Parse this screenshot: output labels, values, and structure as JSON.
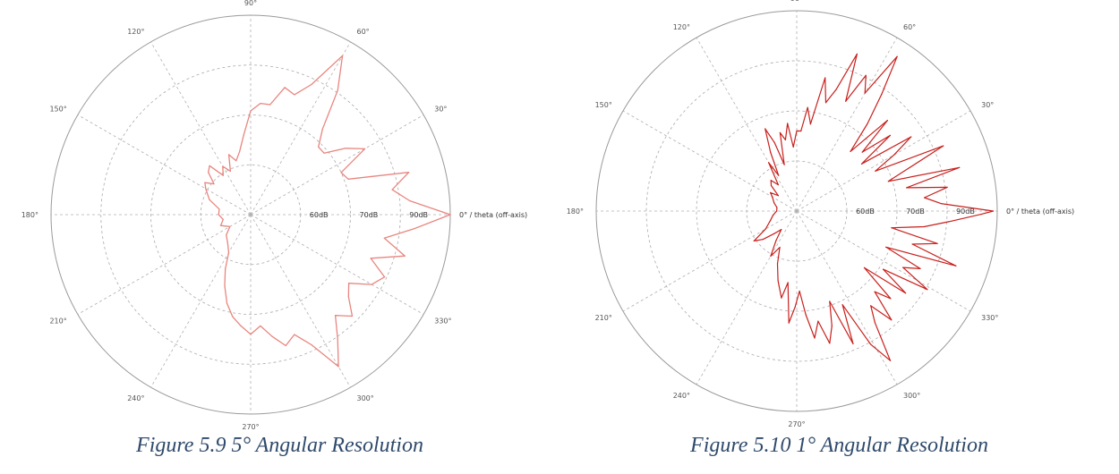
{
  "figures": [
    {
      "caption": "Figure 5.9 5° Angular Resolution",
      "series_color": "#e8867f"
    },
    {
      "caption": "Figure 5.10 1° Angular Resolution",
      "series_color": "#c8201c"
    }
  ],
  "chart_data": [
    {
      "type": "polar-line",
      "angular_unit": "degrees",
      "angular_ticks": [
        "0° / theta (off-axis)",
        "30°",
        "60°",
        "90°",
        "120°",
        "150°",
        "180°",
        "210°",
        "240°",
        "270°",
        "300°",
        "330°"
      ],
      "radial_ticks": [
        "60dB",
        "70dB",
        "90dB"
      ],
      "r_range_db": [
        40,
        90
      ],
      "grid": true,
      "series": [
        {
          "angular_resolution_deg": 5,
          "points": [
            [
              0,
              90
            ],
            [
              5,
              80
            ],
            [
              10,
              76
            ],
            [
              15,
              81
            ],
            [
              20,
              66
            ],
            [
              25,
              65
            ],
            [
              30,
              73
            ],
            [
              35,
              69
            ],
            [
              40,
              64
            ],
            [
              45,
              64
            ],
            [
              50,
              68
            ],
            [
              55,
              78
            ],
            [
              60,
              86
            ],
            [
              65,
              76
            ],
            [
              70,
              72
            ],
            [
              75,
              73
            ],
            [
              80,
              68
            ],
            [
              85,
              68
            ],
            [
              90,
              66
            ],
            [
              95,
              60
            ],
            [
              100,
              56
            ],
            [
              105,
              54
            ],
            [
              110,
              56
            ],
            [
              115,
              52
            ],
            [
              120,
              54
            ],
            [
              125,
              52
            ],
            [
              130,
              56
            ],
            [
              135,
              55
            ],
            [
              140,
              52
            ],
            [
              145,
              54
            ],
            [
              150,
              53
            ],
            [
              160,
              51
            ],
            [
              170,
              48
            ],
            [
              180,
              48
            ],
            [
              190,
              47
            ],
            [
              200,
              48
            ],
            [
              210,
              46
            ],
            [
              220,
              48
            ],
            [
              230,
              49
            ],
            [
              240,
              51
            ],
            [
              245,
              55
            ],
            [
              250,
              59
            ],
            [
              255,
              63
            ],
            [
              260,
              66
            ],
            [
              265,
              68
            ],
            [
              270,
              70
            ],
            [
              275,
              68
            ],
            [
              280,
              71
            ],
            [
              285,
              74
            ],
            [
              290,
              72
            ],
            [
              295,
              76
            ],
            [
              300,
              84
            ],
            [
              305,
              78
            ],
            [
              310,
              73
            ],
            [
              315,
              76
            ],
            [
              320,
              72
            ],
            [
              325,
              70
            ],
            [
              330,
              75
            ],
            [
              335,
              77
            ],
            [
              340,
              72
            ],
            [
              345,
              80
            ],
            [
              350,
              74
            ],
            [
              355,
              81
            ]
          ]
        }
      ]
    },
    {
      "type": "polar-line",
      "angular_unit": "degrees",
      "angular_ticks": [
        "0° / theta (off-axis)",
        "30°",
        "60°",
        "90°",
        "120°",
        "150°",
        "180°",
        "210°",
        "240°",
        "270°",
        "300°",
        "330°"
      ],
      "radial_ticks": [
        "60dB",
        "70dB",
        "90dB"
      ],
      "r_range_db": [
        40,
        90
      ],
      "grid": true,
      "series": [
        {
          "angular_resolution_deg": 1,
          "points": [
            [
              0,
              89
            ],
            [
              3,
              76
            ],
            [
              6,
              72
            ],
            [
              9,
              78
            ],
            [
              12,
              68
            ],
            [
              15,
              82
            ],
            [
              18,
              64
            ],
            [
              21,
              70
            ],
            [
              24,
              80
            ],
            [
              27,
              62
            ],
            [
              30,
              68
            ],
            [
              33,
              74
            ],
            [
              36,
              60
            ],
            [
              39,
              70
            ],
            [
              42,
              62
            ],
            [
              45,
              72
            ],
            [
              48,
              60
            ],
            [
              51,
              68
            ],
            [
              54,
              76
            ],
            [
              57,
              86
            ],
            [
              60,
              74
            ],
            [
              63,
              78
            ],
            [
              66,
              70
            ],
            [
              69,
              82
            ],
            [
              72,
              72
            ],
            [
              75,
              68
            ],
            [
              78,
              74
            ],
            [
              81,
              62
            ],
            [
              84,
              66
            ],
            [
              87,
              60
            ],
            [
              90,
              60
            ],
            [
              93,
              56
            ],
            [
              96,
              62
            ],
            [
              99,
              58
            ],
            [
              102,
              60
            ],
            [
              105,
              52
            ],
            [
              108,
              58
            ],
            [
              111,
              62
            ],
            [
              114,
              56
            ],
            [
              117,
              50
            ],
            [
              120,
              54
            ],
            [
              125,
              48
            ],
            [
              130,
              50
            ],
            [
              135,
              49
            ],
            [
              140,
              46
            ],
            [
              145,
              48
            ],
            [
              150,
              47
            ],
            [
              160,
              46
            ],
            [
              170,
              45
            ],
            [
              180,
              45
            ],
            [
              190,
              46
            ],
            [
              200,
              47
            ],
            [
              210,
              49
            ],
            [
              215,
              53
            ],
            [
              220,
              51
            ],
            [
              225,
              48
            ],
            [
              230,
              46
            ],
            [
              235,
              49
            ],
            [
              240,
              53
            ],
            [
              245,
              50
            ],
            [
              250,
              54
            ],
            [
              255,
              58
            ],
            [
              260,
              62
            ],
            [
              263,
              58
            ],
            [
              266,
              68
            ],
            [
              269,
              64
            ],
            [
              272,
              60
            ],
            [
              275,
              66
            ],
            [
              278,
              72
            ],
            [
              281,
              68
            ],
            [
              284,
              74
            ],
            [
              287,
              70
            ],
            [
              290,
              64
            ],
            [
              293,
              76
            ],
            [
              296,
              66
            ],
            [
              299,
              78
            ],
            [
              302,
              84
            ],
            [
              305,
              74
            ],
            [
              308,
              70
            ],
            [
              311,
              76
            ],
            [
              314,
              68
            ],
            [
              317,
              72
            ],
            [
              320,
              62
            ],
            [
              323,
              74
            ],
            [
              326,
              66
            ],
            [
              329,
              78
            ],
            [
              332,
              70
            ],
            [
              335,
              74
            ],
            [
              338,
              64
            ],
            [
              341,
              82
            ],
            [
              344,
              70
            ],
            [
              347,
              76
            ],
            [
              350,
              64
            ],
            [
              353,
              72
            ],
            [
              356,
              78
            ],
            [
              359,
              86
            ]
          ]
        }
      ]
    }
  ]
}
